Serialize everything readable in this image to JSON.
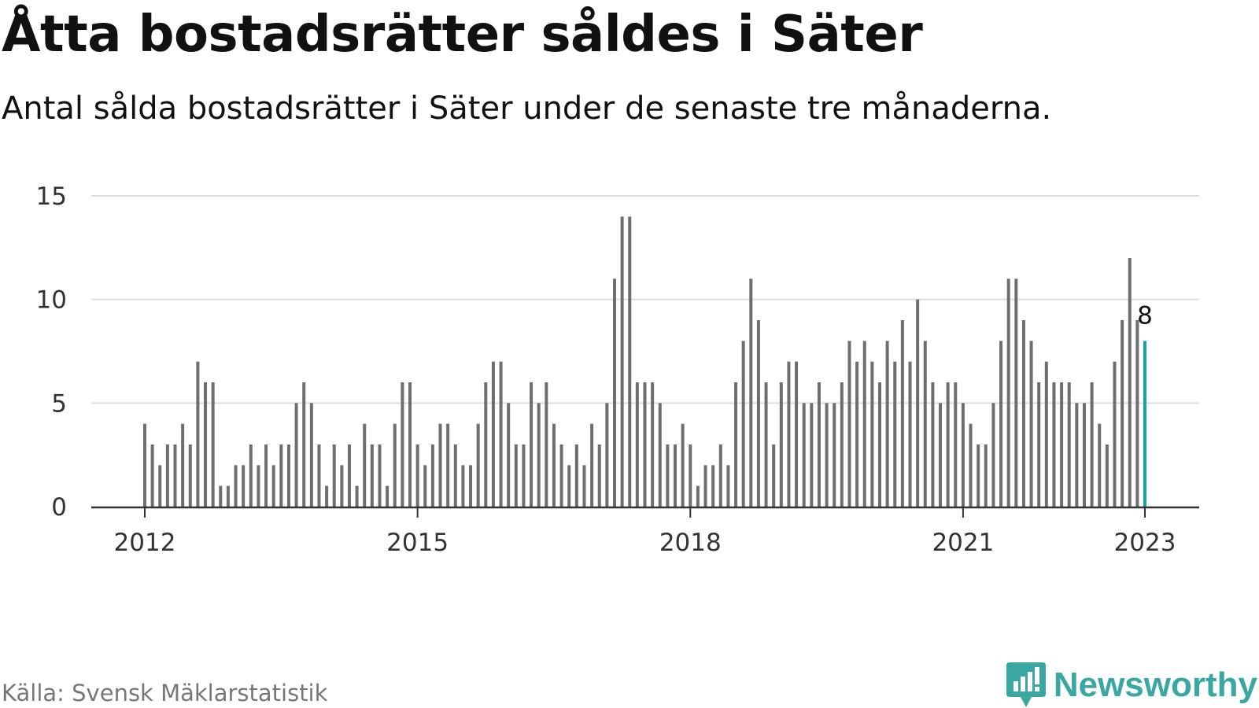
{
  "header": {
    "title": "Åtta bostadsrätter såldes i Säter",
    "subtitle": "Antal sålda bostadsrätter i Säter under de senaste tre månaderna."
  },
  "footer": {
    "source": "Källa: Svensk Mäklarstatistik",
    "brand": "Newsworthy",
    "brand_icon": "newsworthy-logo-icon"
  },
  "colors": {
    "bar": "#6e6e72",
    "highlight": "#13a89e",
    "grid": "#dddddd",
    "axis": "#333333",
    "brand": "#3aa7a3"
  },
  "chart_data": {
    "type": "bar",
    "title": "Åtta bostadsrätter såldes i Säter",
    "xlabel": "",
    "ylabel": "",
    "ylim": [
      0,
      15
    ],
    "yticks": [
      0,
      5,
      10,
      15
    ],
    "xtick_labels": [
      "2012",
      "2015",
      "2018",
      "2021",
      "2023"
    ],
    "grid": true,
    "highlight_label": "8",
    "start": "2012-01",
    "end": "2023-01",
    "values": [
      4,
      3,
      2,
      3,
      3,
      4,
      3,
      7,
      6,
      6,
      1,
      1,
      2,
      2,
      3,
      2,
      3,
      2,
      3,
      3,
      5,
      6,
      5,
      3,
      1,
      3,
      2,
      3,
      1,
      4,
      3,
      3,
      1,
      4,
      6,
      6,
      3,
      2,
      3,
      4,
      4,
      3,
      2,
      2,
      4,
      6,
      7,
      7,
      5,
      3,
      3,
      6,
      5,
      6,
      4,
      3,
      2,
      3,
      2,
      4,
      3,
      5,
      11,
      14,
      14,
      6,
      6,
      6,
      5,
      3,
      3,
      4,
      3,
      1,
      2,
      2,
      3,
      2,
      6,
      8,
      11,
      9,
      6,
      3,
      6,
      7,
      7,
      5,
      5,
      6,
      5,
      5,
      6,
      8,
      7,
      8,
      7,
      6,
      8,
      7,
      9,
      7,
      10,
      8,
      6,
      5,
      6,
      6,
      5,
      4,
      3,
      3,
      5,
      8,
      11,
      11,
      9,
      8,
      6,
      7,
      6,
      6,
      6,
      5,
      5,
      6,
      4,
      3,
      7,
      9,
      12,
      9,
      8
    ]
  }
}
